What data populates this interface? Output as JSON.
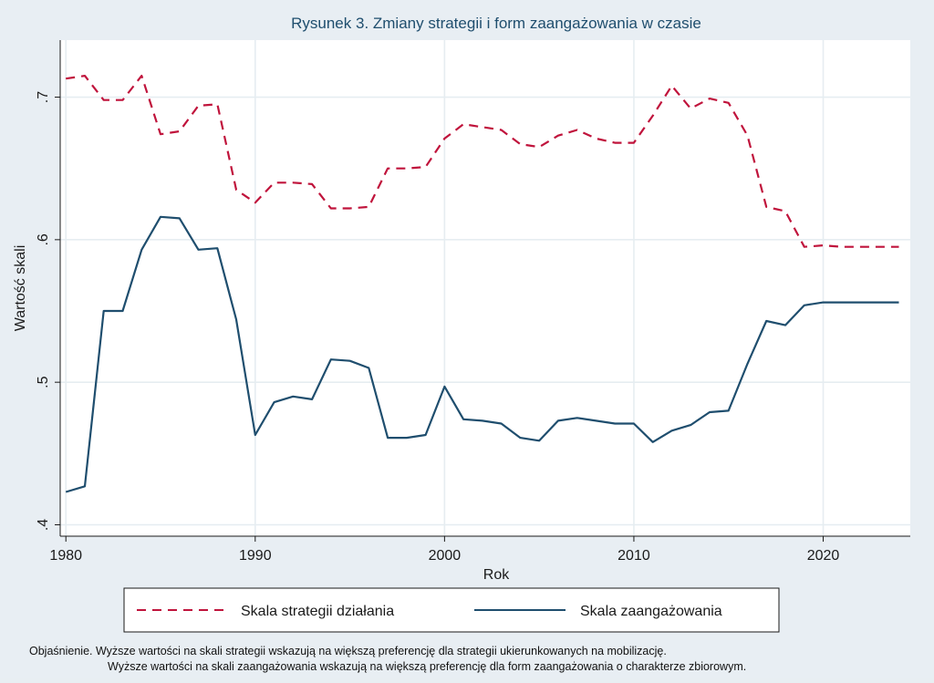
{
  "chart_data": {
    "type": "line",
    "title": "Rysunek 3. Zmiany strategii i form zaangażowania w czasie",
    "xlabel": "Rok",
    "ylabel": "Wartość skali",
    "xlim": [
      1979.7,
      2024.6
    ],
    "ylim": [
      0.392,
      0.74
    ],
    "xticks": [
      1980,
      1990,
      2000,
      2010,
      2020
    ],
    "xtick_labels": [
      "1980",
      "1990",
      "2000",
      "2010",
      "2020"
    ],
    "yticks": [
      0.4,
      0.5,
      0.6,
      0.7
    ],
    "ytick_labels": [
      ".4",
      ".5",
      ".6",
      ".7"
    ],
    "grid": true,
    "legend_position": "bottom",
    "series": [
      {
        "name": "Skala strategii działania",
        "style": "dashed",
        "color": "#c0143c",
        "x": [
          1980,
          1981,
          1982,
          1983,
          1984,
          1985,
          1986,
          1987,
          1988,
          1989,
          1990,
          1991,
          1992,
          1993,
          1994,
          1995,
          1996,
          1997,
          1998,
          1999,
          2000,
          2001,
          2002,
          2003,
          2004,
          2005,
          2006,
          2007,
          2008,
          2009,
          2010,
          2011,
          2012,
          2013,
          2014,
          2015,
          2016,
          2017,
          2018,
          2019,
          2020,
          2021,
          2022,
          2023,
          2024
        ],
        "values": [
          0.713,
          0.715,
          0.698,
          0.698,
          0.715,
          0.674,
          0.676,
          0.694,
          0.695,
          0.635,
          0.626,
          0.64,
          0.64,
          0.639,
          0.622,
          0.622,
          0.623,
          0.65,
          0.65,
          0.651,
          0.671,
          0.681,
          0.679,
          0.677,
          0.667,
          0.665,
          0.673,
          0.677,
          0.671,
          0.668,
          0.668,
          0.687,
          0.708,
          0.692,
          0.699,
          0.696,
          0.673,
          0.623,
          0.62,
          0.595,
          0.596,
          0.595,
          0.595,
          0.595,
          0.595
        ]
      },
      {
        "name": "Skala zaangażowania",
        "style": "solid",
        "color": "#1f4e6e",
        "x": [
          1980,
          1981,
          1982,
          1983,
          1984,
          1985,
          1986,
          1987,
          1988,
          1989,
          1990,
          1991,
          1992,
          1993,
          1994,
          1995,
          1996,
          1997,
          1998,
          1999,
          2000,
          2001,
          2002,
          2003,
          2004,
          2005,
          2006,
          2007,
          2008,
          2009,
          2010,
          2011,
          2012,
          2013,
          2014,
          2015,
          2016,
          2017,
          2018,
          2019,
          2020,
          2021,
          2022,
          2023,
          2024
        ],
        "values": [
          0.423,
          0.427,
          0.55,
          0.55,
          0.593,
          0.616,
          0.615,
          0.593,
          0.594,
          0.544,
          0.463,
          0.486,
          0.49,
          0.488,
          0.516,
          0.515,
          0.51,
          0.461,
          0.461,
          0.463,
          0.497,
          0.474,
          0.473,
          0.471,
          0.461,
          0.459,
          0.473,
          0.475,
          0.473,
          0.471,
          0.471,
          0.458,
          0.466,
          0.47,
          0.479,
          0.48,
          0.513,
          0.543,
          0.54,
          0.554,
          0.556,
          0.556,
          0.556,
          0.556,
          0.556
        ]
      }
    ]
  },
  "notes": {
    "line1": "Objaśnienie. Wyższe wartości na skali strategii wskazują na większą preferencję dla strategii ukierunkowanych na mobilizację.",
    "line2": "Wyższe wartości na skali zaangażowania wskazują na większą preferencję dla form zaangażowania o charakterze zbiorowym."
  },
  "colors": {
    "plot_background": "#ffffff",
    "page_background": "#e8eef3",
    "axis": "#1a1a1a",
    "grid": "#e6edf1",
    "title": "#1f4e6e"
  }
}
